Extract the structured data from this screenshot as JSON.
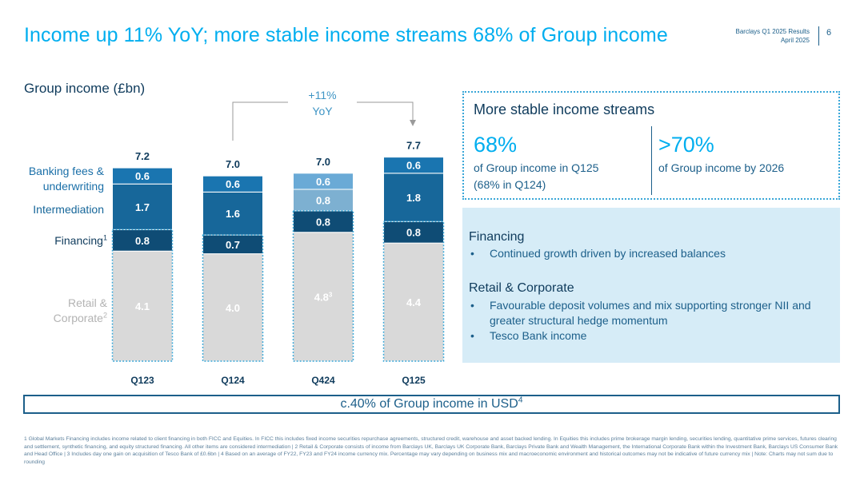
{
  "header": {
    "title": "Income up 11% YoY; more stable income streams 68% of Group income",
    "report": "Barclays Q1 2025 Results",
    "date": "April 2025",
    "page_number": "6"
  },
  "legend": {
    "banking_fees_1": "Banking fees &",
    "banking_fees_2": "underwriting",
    "intermediation": "Intermediation",
    "financing": "Financing",
    "financing_sup": "1",
    "retail_1": "Retail &",
    "retail_2": "Corporate",
    "retail_sup": "2"
  },
  "yoy": {
    "line1": "+11%",
    "line2": "YoY"
  },
  "chart_data": {
    "type": "bar",
    "stacked": true,
    "title": "Group income (£bn)",
    "categories": [
      "Q123",
      "Q124",
      "Q424",
      "Q125"
    ],
    "totals": [
      "7.2",
      "7.0",
      "7.0",
      "7.7"
    ],
    "series": [
      {
        "name": "Retail & Corporate",
        "values": [
          4.1,
          4.0,
          4.8,
          4.4
        ],
        "labels": [
          "4.1",
          "4.0",
          "4.8",
          "4.4"
        ]
      },
      {
        "name": "Financing",
        "values": [
          0.8,
          0.7,
          0.8,
          0.8
        ],
        "labels": [
          "0.8",
          "0.7",
          "0.8",
          "0.8"
        ]
      },
      {
        "name": "Intermediation",
        "values": [
          1.7,
          1.6,
          0.8,
          1.8
        ],
        "labels": [
          "1.7",
          "1.6",
          "0.8",
          "1.8"
        ]
      },
      {
        "name": "Banking fees & underwriting",
        "values": [
          0.6,
          0.6,
          0.6,
          0.6
        ],
        "labels": [
          "0.6",
          "0.6",
          "0.6",
          "0.6"
        ]
      }
    ],
    "q424_retail_sup": "3",
    "colors": {
      "retail": "#d9d9d9",
      "financing": "#0f4c75",
      "intermediation": "#17679a",
      "fees": "#1a75b0",
      "q424_intermediation": "#7db0d1",
      "q424_fees": "#6aaad6"
    },
    "yoy_change": "+11%"
  },
  "stable_box": {
    "title": "More stable income streams",
    "stat1": "68%",
    "stat1_line1": "of Group income in Q125",
    "stat1_line2": "(68% in Q124)",
    "stat2": ">70%",
    "stat2_desc": "of Group income by 2026"
  },
  "details": {
    "financing_title": "Financing",
    "financing_bullet": "Continued growth driven by increased balances",
    "retail_title": "Retail & Corporate",
    "retail_bullet1": "Favourable deposit volumes and mix supporting stronger NII and greater structural hedge momentum",
    "retail_bullet2": "Tesco Bank income",
    "bullet_char": "•"
  },
  "usd_banner": {
    "text": "c.40% of Group income in USD",
    "sup": "4"
  },
  "footnote": "1 Global Markets Financing includes income related to client financing in both FICC and Equities. In FICC this includes fixed income securities repurchase agreements, structured credit, warehouse and asset backed lending. In Equities this includes prime brokerage margin lending, securities lending, quantitative prime services, futures clearing and settlement, synthetic financing, and equity structured financing. All other items are considered intermediation | 2 Retail & Corporate consists of income from Barclays UK, Barclays UK Corporate Bank, Barclays Private Bank and Wealth Management, the International Corporate Bank within the Investment Bank, Barclays US Consumer Bank and Head Office | 3 Includes day one gain on acquisition of Tesco Bank of £0.6bn | 4 Based on an average of FY22, FY23 and FY24 income currency mix. Percentage may vary depending on business mix and macroeconomic environment and historical outcomes may not be indicative of future currency mix | Note: Charts may not sum due to rounding"
}
